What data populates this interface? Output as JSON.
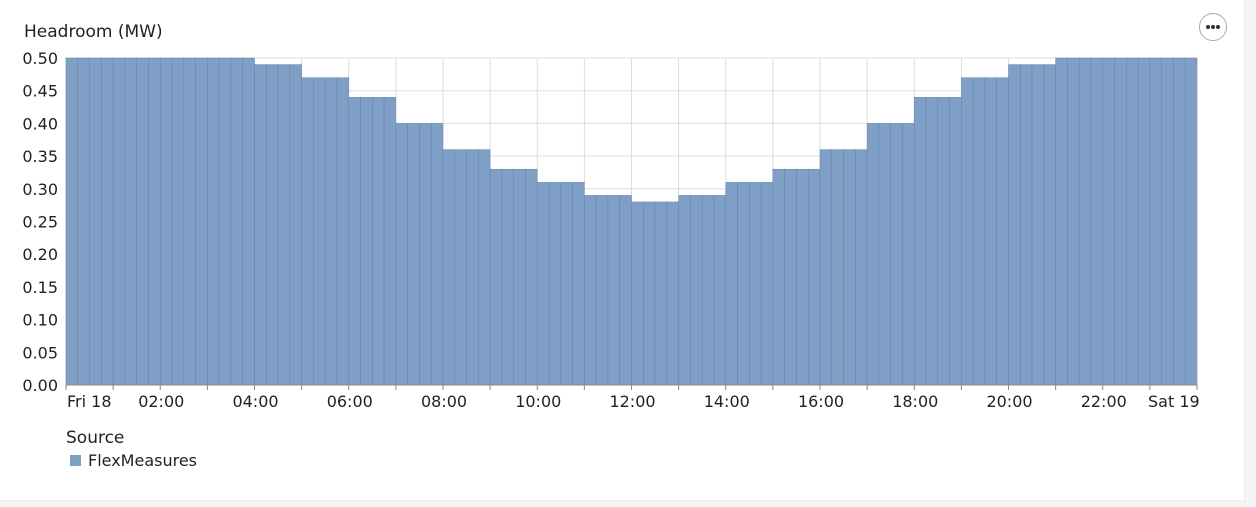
{
  "chart_data": {
    "type": "bar",
    "ylabel": "Headroom (MW)",
    "ylim": [
      0,
      0.5
    ],
    "yticks": [
      "0.00",
      "0.05",
      "0.10",
      "0.15",
      "0.20",
      "0.25",
      "0.30",
      "0.35",
      "0.40",
      "0.45",
      "0.50"
    ],
    "xticks": [
      "Fri 18",
      "02:00",
      "04:00",
      "06:00",
      "08:00",
      "10:00",
      "12:00",
      "14:00",
      "16:00",
      "18:00",
      "20:00",
      "22:00",
      "Sat 19"
    ],
    "bar_interval": "15min",
    "x": [
      "00:00",
      "01:00",
      "02:00",
      "03:00",
      "04:00",
      "05:00",
      "06:00",
      "07:00",
      "08:00",
      "09:00",
      "10:00",
      "11:00",
      "12:00",
      "13:00",
      "14:00",
      "15:00",
      "16:00",
      "17:00",
      "18:00",
      "19:00",
      "20:00",
      "21:00",
      "22:00",
      "23:00"
    ],
    "series": [
      {
        "name": "FlexMeasures",
        "color": "#7f9fc6",
        "values": [
          0.5,
          0.5,
          0.5,
          0.5,
          0.49,
          0.47,
          0.44,
          0.4,
          0.36,
          0.33,
          0.31,
          0.29,
          0.28,
          0.29,
          0.31,
          0.33,
          0.36,
          0.4,
          0.44,
          0.47,
          0.49,
          0.5,
          0.5,
          0.5
        ]
      }
    ],
    "grid": true,
    "legend": {
      "title": "Source",
      "placement": "bottom-left"
    }
  }
}
